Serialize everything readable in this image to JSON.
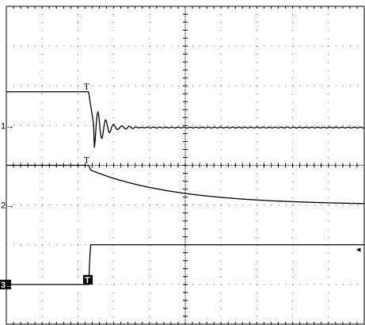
{
  "chart_data": {
    "type": "line",
    "title": "",
    "xlabel": "",
    "ylabel": "",
    "grid": true,
    "x_divisions": 10,
    "y_divisions": 8,
    "trigger_position_div": 2.3,
    "channels": [
      {
        "marker": "1",
        "style": "normal",
        "ground_div": 5.0,
        "trigger_mark": "T",
        "mark_at_div": 2.25,
        "before_trigger_level_div": 5.85,
        "after_level_div": 4.95,
        "ringing": {
          "amplitude_div": 0.55,
          "decay_div": 0.3,
          "period_div": 0.22
        }
      },
      {
        "marker": "2",
        "style": "normal",
        "ground_div": 3.0,
        "trigger_mark": "T",
        "mark_at_div": 2.25,
        "before_trigger_level_div": 4.0,
        "after_level_div": 3.0,
        "decay_time_constant_div": 2.4
      },
      {
        "marker": "3",
        "style": "inverse",
        "ground_div": 1.0,
        "trigger_mark": "T",
        "mark_at_div": 2.28,
        "before_trigger_level_div": 1.0,
        "after_level_div": 2.0
      }
    ],
    "trigger_level_arrow": "◂",
    "trigger_level_div": 1.5
  }
}
